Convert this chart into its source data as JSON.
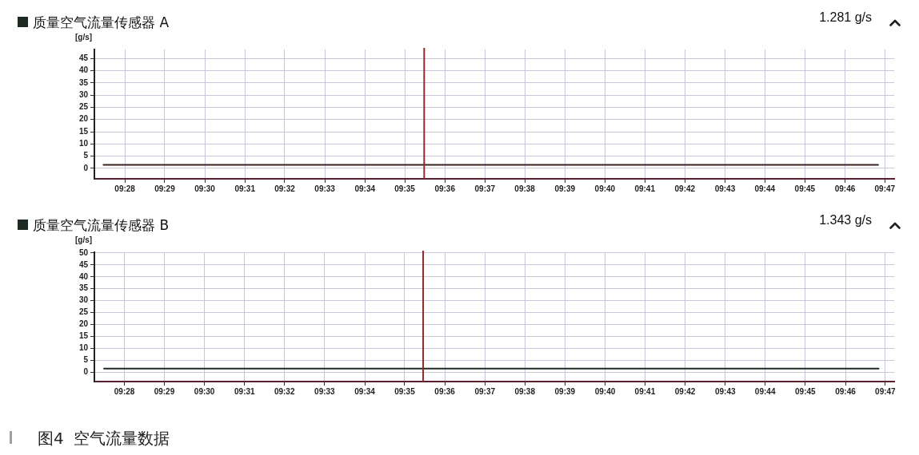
{
  "chart_data": [
    {
      "type": "line",
      "title": "质量空气流量传感器 A",
      "ylabel": "[g/s]",
      "annotations": [
        "1.281 g/s"
      ],
      "x": [
        9.4578,
        9.7805
      ],
      "series": [
        {
          "color": "#3a2424",
          "values": [
            1.4,
            1.4
          ]
        }
      ],
      "xlim": [
        9.454,
        9.7872
      ],
      "xticks": [
        {
          "value": 9.4667,
          "label": "09:28"
        },
        {
          "value": 9.4833,
          "label": "09:29"
        },
        {
          "value": 9.5,
          "label": "09:30"
        },
        {
          "value": 9.5167,
          "label": "09:31"
        },
        {
          "value": 9.5333,
          "label": "09:32"
        },
        {
          "value": 9.55,
          "label": "09:33"
        },
        {
          "value": 9.5667,
          "label": "09:34"
        },
        {
          "value": 9.5833,
          "label": "09:35"
        },
        {
          "value": 9.6,
          "label": "09:36"
        },
        {
          "value": 9.6167,
          "label": "09:37"
        },
        {
          "value": 9.6333,
          "label": "09:38"
        },
        {
          "value": 9.65,
          "label": "09:39"
        },
        {
          "value": 9.6667,
          "label": "09:40"
        },
        {
          "value": 9.6833,
          "label": "09:41"
        },
        {
          "value": 9.7,
          "label": "09:42"
        },
        {
          "value": 9.7167,
          "label": "09:43"
        },
        {
          "value": 9.7333,
          "label": "09:44"
        },
        {
          "value": 9.75,
          "label": "09:45"
        },
        {
          "value": 9.7667,
          "label": "09:46"
        },
        {
          "value": 9.7833,
          "label": "09:47"
        }
      ],
      "ylim": [
        -4.3,
        48.7
      ],
      "yticks": [
        0,
        5,
        10,
        15,
        20,
        25,
        30,
        35,
        40,
        45
      ],
      "grid": true,
      "ref_lines": [
        {
          "axis": "x",
          "value": 9.5914,
          "color": "#8b2a2a"
        }
      ]
    },
    {
      "type": "line",
      "title": "质量空气流量传感器 B",
      "ylabel": "[g/s]",
      "annotations": [
        "1.343 g/s",
        "图4  空气流量数据"
      ],
      "x": [
        9.4582,
        9.7805
      ],
      "series": [
        {
          "color": "#1f2a20",
          "values": [
            1.5,
            1.5
          ]
        }
      ],
      "xlim": [
        9.4542,
        9.787
      ],
      "xticks": [
        {
          "value": 9.4667,
          "label": "09:28"
        },
        {
          "value": 9.4833,
          "label": "09:29"
        },
        {
          "value": 9.5,
          "label": "09:30"
        },
        {
          "value": 9.5167,
          "label": "09:31"
        },
        {
          "value": 9.5333,
          "label": "09:32"
        },
        {
          "value": 9.55,
          "label": "09:33"
        },
        {
          "value": 9.5667,
          "label": "09:34"
        },
        {
          "value": 9.5833,
          "label": "09:35"
        },
        {
          "value": 9.6,
          "label": "09:36"
        },
        {
          "value": 9.6167,
          "label": "09:37"
        },
        {
          "value": 9.6333,
          "label": "09:38"
        },
        {
          "value": 9.65,
          "label": "09:39"
        },
        {
          "value": 9.6667,
          "label": "09:40"
        },
        {
          "value": 9.6833,
          "label": "09:41"
        },
        {
          "value": 9.7,
          "label": "09:42"
        },
        {
          "value": 9.7167,
          "label": "09:43"
        },
        {
          "value": 9.7333,
          "label": "09:44"
        },
        {
          "value": 9.75,
          "label": "09:45"
        },
        {
          "value": 9.7667,
          "label": "09:46"
        },
        {
          "value": 9.7833,
          "label": "09:47"
        }
      ],
      "ylim": [
        -3.9,
        50.3
      ],
      "yticks": [
        0,
        5,
        10,
        15,
        20,
        25,
        30,
        35,
        40,
        45,
        50
      ],
      "grid": true,
      "ref_lines": [
        {
          "axis": "x",
          "value": 9.591,
          "color": "#8b2a2a"
        }
      ]
    }
  ]
}
